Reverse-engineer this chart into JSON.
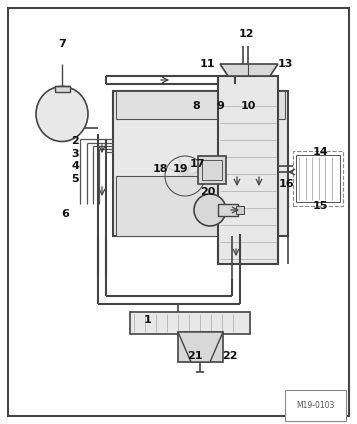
{
  "bg_color": "#ffffff",
  "border_color": "#444444",
  "line_color": "#555555",
  "gray": "#888888",
  "lgray": "#aaaaaa",
  "fill_light": "#e8e8e8",
  "fill_mid": "#d8d8d8",
  "watermark": "M19-0103",
  "figsize": [
    3.57,
    4.24
  ],
  "dpi": 100
}
